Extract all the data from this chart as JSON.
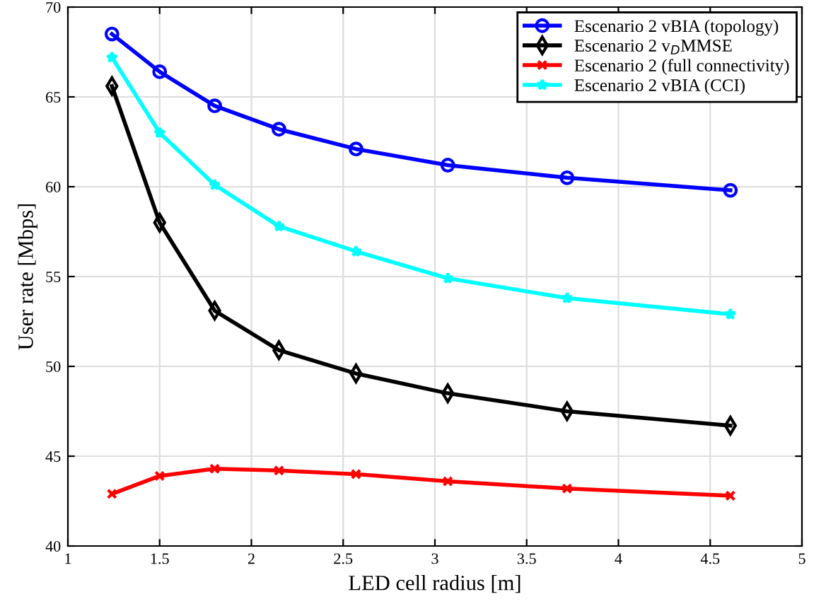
{
  "chart_data": {
    "type": "line",
    "xlabel": "LED cell radius [m]",
    "ylabel": "User rate [Mbps]",
    "x": [
      1.24,
      1.5,
      1.8,
      2.15,
      2.57,
      3.07,
      3.72,
      4.61
    ],
    "series": [
      {
        "name": "Escenario 2 vBIA (topology)",
        "color": "#0000ff",
        "marker": "circle",
        "values": [
          68.5,
          66.4,
          64.5,
          63.2,
          62.1,
          61.2,
          60.5,
          59.8
        ]
      },
      {
        "name": "Escenario 2 v$_{D}$MMSE",
        "color": "#000000",
        "marker": "diamond",
        "values": [
          65.6,
          58.0,
          53.1,
          50.9,
          49.6,
          48.5,
          47.5,
          46.7
        ]
      },
      {
        "name": "Escenario 2 (full connectivity)",
        "color": "#ff0000",
        "marker": "cross",
        "values": [
          42.9,
          43.9,
          44.3,
          44.2,
          44.0,
          43.6,
          43.2,
          42.8
        ]
      },
      {
        "name": "Escenario 2 vBIA (CCI)",
        "color": "#00ffff",
        "marker": "star",
        "values": [
          67.2,
          63.0,
          60.1,
          57.8,
          56.4,
          54.9,
          53.8,
          52.9
        ]
      }
    ],
    "xlim": [
      1,
      5
    ],
    "xticks": [
      1,
      1.5,
      2,
      2.5,
      3,
      3.5,
      4,
      4.5,
      5
    ],
    "ylim": [
      40,
      70
    ],
    "yticks": [
      40,
      45,
      50,
      55,
      60,
      65,
      70
    ],
    "grid": true,
    "legend": "top right",
    "line_style": "solid"
  }
}
